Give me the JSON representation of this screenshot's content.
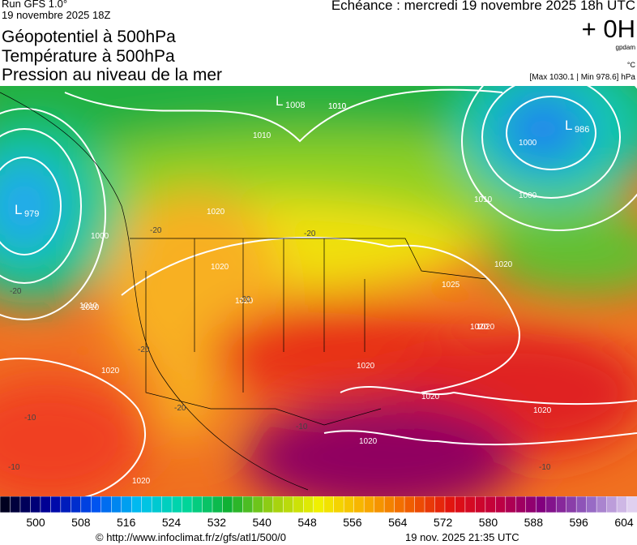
{
  "header": {
    "run": "Run GFS 1.0°",
    "run_date": "19 novembre 2025 18Z",
    "valid_time": "Echéance : mercredi 19 novembre 2025 18h UTC",
    "fields": [
      "Géopotentiel à 500hPa",
      "Température à 500hPa",
      "Pression au niveau de la mer"
    ],
    "lead": "+ 0H",
    "unit_geo": "gpdam",
    "unit_temp": "°C",
    "pressure_range": "[Max 1030.1 | Min 978.6] hPa"
  },
  "map": {
    "lows": [
      {
        "symbol": "L",
        "value": "1008"
      },
      {
        "symbol": "L",
        "value": "979"
      },
      {
        "symbol": "L",
        "value": "986"
      }
    ],
    "isobar_labels": [
      "1010",
      "1010",
      "1000",
      "1010",
      "1000",
      "1010",
      "1000",
      "1020",
      "1020",
      "1020",
      "1010",
      "1020",
      "1020",
      "1020",
      "1020",
      "1020",
      "1010",
      "1020",
      "1020",
      "1020",
      "1025",
      "1020"
    ],
    "isotherm_labels": [
      "-20",
      "-20",
      "-20",
      "-20",
      "-20",
      "-10",
      "-10",
      "-10",
      "-10",
      "-20"
    ]
  },
  "colorbar": {
    "ticks": [
      500,
      508,
      516,
      524,
      532,
      540,
      548,
      556,
      564,
      572,
      580,
      588,
      596,
      604
    ]
  },
  "footer": {
    "source": "© http://www.infoclimat.fr/z/gfs/atl1/500/0",
    "generated": "19 nov. 2025 21:35 UTC"
  }
}
